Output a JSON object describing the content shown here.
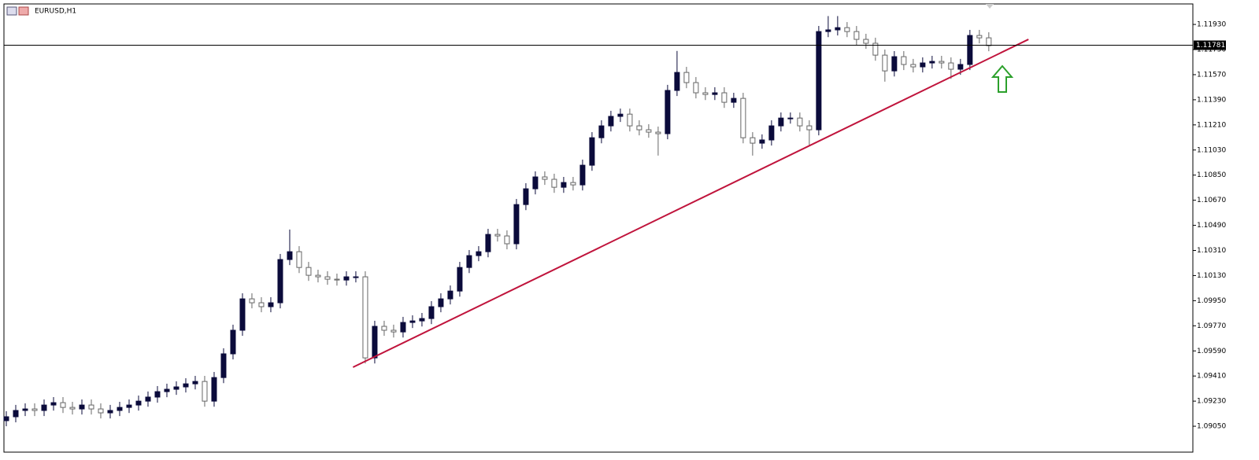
{
  "chart_data": {
    "type": "candlestick",
    "title": "EURUSD,H1",
    "open": [
      1.0909,
      1.09118,
      1.09163,
      1.09174,
      1.09163,
      1.09202,
      1.09219,
      1.09185,
      1.09174,
      1.09202,
      1.09174,
      1.09146,
      1.09163,
      1.09185,
      1.09202,
      1.0923,
      1.09259,
      1.09298,
      1.09315,
      1.09332,
      1.09354,
      1.09371,
      1.0923,
      1.09399,
      1.09569,
      1.09738,
      1.09963,
      1.09935,
      1.09907,
      1.09935,
      1.10245,
      1.10301,
      1.10188,
      1.10132,
      1.10121,
      1.10104,
      1.10098,
      1.10121,
      1.10121,
      1.0954,
      1.09766,
      1.09738,
      1.09726,
      1.09794,
      1.09805,
      1.09822,
      1.09907,
      1.09963,
      1.10019,
      1.10188,
      1.10273,
      1.10301,
      1.10425,
      1.10414,
      1.10358,
      1.10639,
      1.10752,
      1.10837,
      1.1082,
      1.10763,
      1.10797,
      1.1078,
      1.10921,
      1.11118,
      1.11203,
      1.11271,
      1.11287,
      1.11203,
      1.11175,
      1.11158,
      1.11147,
      1.11457,
      1.11586,
      1.11513,
      1.1144,
      1.11428,
      1.1144,
      1.11372,
      1.114,
      1.11118,
      1.11079,
      1.11102,
      1.11203,
      1.11259,
      1.11259,
      1.11203,
      1.11175,
      1.11879,
      1.11891,
      1.11907,
      1.11879,
      1.11823,
      1.11795,
      1.1171,
      1.11597,
      1.11699,
      1.11643,
      1.11626,
      1.11654,
      1.11665,
      1.11654,
      1.11609,
      1.11643,
      1.11851,
      1.11834
    ],
    "high": [
      1.09158,
      1.09203,
      1.09214,
      1.09214,
      1.09242,
      1.09259,
      1.09259,
      1.09225,
      1.09242,
      1.09242,
      1.09214,
      1.09203,
      1.09225,
      1.09242,
      1.0927,
      1.09299,
      1.09338,
      1.09355,
      1.09372,
      1.09394,
      1.09411,
      1.09411,
      1.09439,
      1.09609,
      1.09778,
      1.10003,
      1.10003,
      1.09975,
      1.09975,
      1.10285,
      1.1046,
      1.10341,
      1.10228,
      1.10172,
      1.10161,
      1.10144,
      1.10161,
      1.10161,
      1.10161,
      1.09806,
      1.09806,
      1.09778,
      1.09834,
      1.09845,
      1.09862,
      1.09947,
      1.10003,
      1.10059,
      1.10228,
      1.10313,
      1.10341,
      1.10465,
      1.10465,
      1.10454,
      1.10679,
      1.10792,
      1.10877,
      1.10877,
      1.1086,
      1.10837,
      1.10837,
      1.10961,
      1.11158,
      1.11243,
      1.11311,
      1.11327,
      1.11327,
      1.11243,
      1.11215,
      1.11198,
      1.11497,
      1.1174,
      1.11626,
      1.11553,
      1.1148,
      1.1148,
      1.1148,
      1.1144,
      1.1144,
      1.11158,
      1.11142,
      1.11243,
      1.11299,
      1.11299,
      1.11299,
      1.11243,
      1.11919,
      1.1199,
      1.1199,
      1.11947,
      1.11919,
      1.11863,
      1.11835,
      1.1175,
      1.11739,
      1.11739,
      1.11683,
      1.11694,
      1.11705,
      1.11705,
      1.11694,
      1.11683,
      1.11891,
      1.11891,
      1.11874
    ],
    "low": [
      1.0905,
      1.09078,
      1.09123,
      1.09123,
      1.09123,
      1.09162,
      1.09145,
      1.09134,
      1.09134,
      1.09134,
      1.09106,
      1.09106,
      1.09123,
      1.09145,
      1.09162,
      1.0919,
      1.09219,
      1.09258,
      1.09275,
      1.09292,
      1.09314,
      1.0919,
      1.0919,
      1.09359,
      1.09529,
      1.09698,
      1.09895,
      1.09867,
      1.09867,
      1.09895,
      1.10205,
      1.10148,
      1.10092,
      1.10081,
      1.10064,
      1.10058,
      1.10058,
      1.10081,
      1.095,
      1.095,
      1.09698,
      1.09686,
      1.09686,
      1.09754,
      1.09765,
      1.09782,
      1.09867,
      1.09923,
      1.09979,
      1.10148,
      1.10233,
      1.10261,
      1.10374,
      1.10318,
      1.10318,
      1.10599,
      1.10712,
      1.1078,
      1.10723,
      1.10723,
      1.1074,
      1.1074,
      1.10881,
      1.11078,
      1.11163,
      1.11231,
      1.11163,
      1.11135,
      1.11118,
      1.1099,
      1.11107,
      1.11417,
      1.11473,
      1.114,
      1.11388,
      1.11388,
      1.11332,
      1.11332,
      1.11078,
      1.1099,
      1.11039,
      1.11062,
      1.11163,
      1.11219,
      1.11163,
      1.11062,
      1.11135,
      1.11839,
      1.11851,
      1.11839,
      1.11783,
      1.11755,
      1.1167,
      1.1152,
      1.11557,
      1.11603,
      1.11586,
      1.11586,
      1.11614,
      1.11614,
      1.1154,
      1.11569,
      1.11603,
      1.11794,
      1.11738
    ],
    "close": [
      1.09118,
      1.09163,
      1.09174,
      1.09163,
      1.09202,
      1.09219,
      1.09185,
      1.09174,
      1.09202,
      1.09174,
      1.09146,
      1.09163,
      1.09185,
      1.09202,
      1.0923,
      1.09259,
      1.09298,
      1.09315,
      1.09332,
      1.09354,
      1.09371,
      1.0923,
      1.09399,
      1.09569,
      1.09738,
      1.09963,
      1.09935,
      1.09907,
      1.09935,
      1.10245,
      1.10301,
      1.10188,
      1.10132,
      1.10121,
      1.10104,
      1.10098,
      1.10121,
      1.10121,
      1.0954,
      1.09766,
      1.09738,
      1.09726,
      1.09794,
      1.09805,
      1.09822,
      1.09907,
      1.09963,
      1.10019,
      1.10188,
      1.10273,
      1.10301,
      1.10425,
      1.10414,
      1.10358,
      1.10639,
      1.10752,
      1.10837,
      1.1082,
      1.10763,
      1.10797,
      1.1078,
      1.10921,
      1.11118,
      1.11203,
      1.11271,
      1.11287,
      1.11203,
      1.11175,
      1.11158,
      1.11147,
      1.11457,
      1.11586,
      1.11513,
      1.1144,
      1.11428,
      1.1144,
      1.11372,
      1.114,
      1.11118,
      1.11079,
      1.11102,
      1.11203,
      1.11259,
      1.11259,
      1.11203,
      1.11175,
      1.11879,
      1.11891,
      1.11907,
      1.11879,
      1.11823,
      1.11795,
      1.1171,
      1.11597,
      1.11699,
      1.11643,
      1.11626,
      1.11654,
      1.11665,
      1.11654,
      1.11609,
      1.11643,
      1.11851,
      1.11834,
      1.11778
    ],
    "up_color": "#0b0b3b",
    "down_color": "#ffffff",
    "xlim": [
      -0.25,
      125.6
    ],
    "ylim": [
      1.0887,
      1.12077
    ],
    "yticks": [
      {
        "value": 1.1193,
        "label": "1.11930"
      },
      {
        "value": 1.1175,
        "label": "1.11750"
      },
      {
        "value": 1.1157,
        "label": "1.11570"
      },
      {
        "value": 1.1139,
        "label": "1.11390"
      },
      {
        "value": 1.1121,
        "label": "1.11210"
      },
      {
        "value": 1.1103,
        "label": "1.11030"
      },
      {
        "value": 1.1085,
        "label": "1.10850"
      },
      {
        "value": 1.1067,
        "label": "1.10670"
      },
      {
        "value": 1.1049,
        "label": "1.10490"
      },
      {
        "value": 1.1031,
        "label": "1.10310"
      },
      {
        "value": 1.1013,
        "label": "1.10130"
      },
      {
        "value": 1.0995,
        "label": "1.09950"
      },
      {
        "value": 1.0977,
        "label": "1.09770"
      },
      {
        "value": 1.0959,
        "label": "1.09590"
      },
      {
        "value": 1.0941,
        "label": "1.09410"
      },
      {
        "value": 1.0923,
        "label": "1.09230"
      },
      {
        "value": 1.0905,
        "label": "1.09050"
      }
    ],
    "current_price": 1.11781,
    "trendline": {
      "x": [
        36.7,
        108.2
      ],
      "y": [
        1.09473,
        1.11823
      ],
      "color": "#c0143c"
    }
  }
}
